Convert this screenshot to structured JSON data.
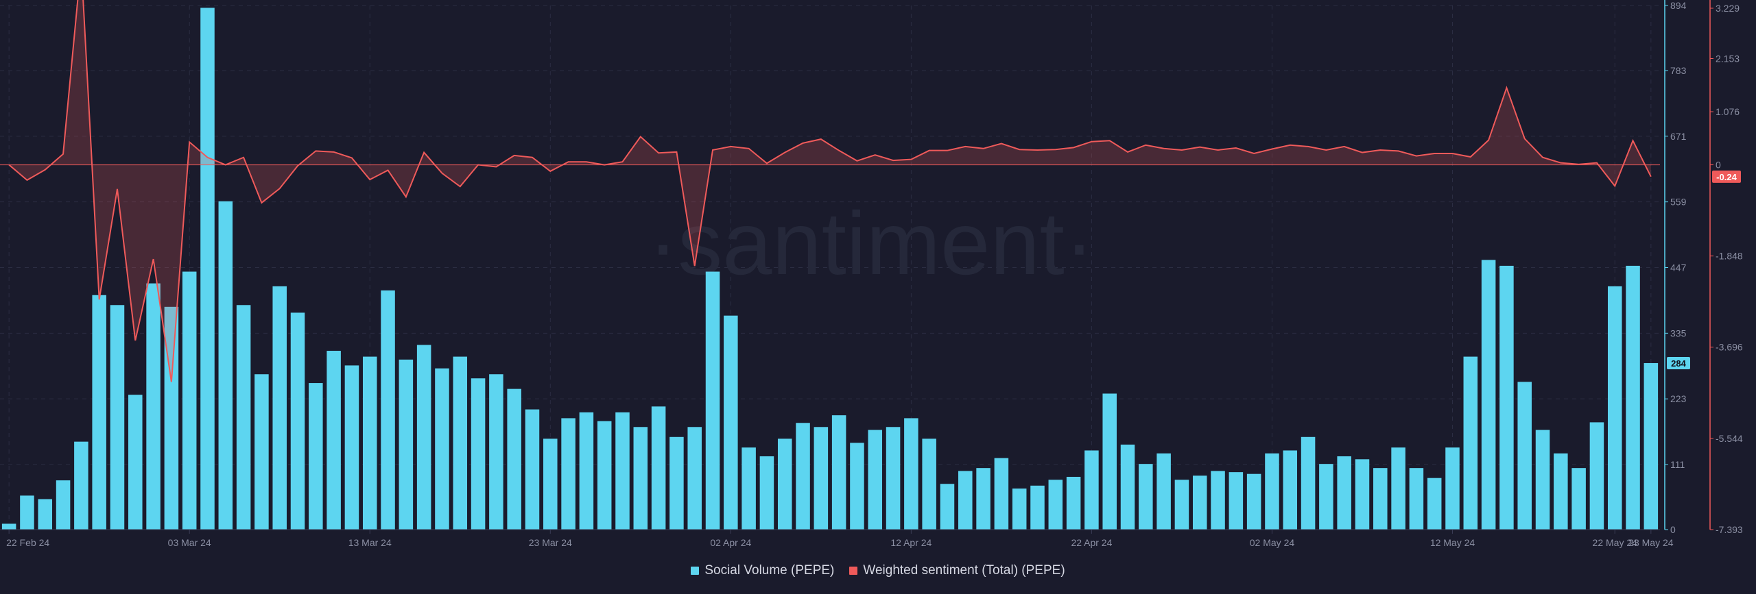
{
  "colors": {
    "background": "#1a1b2c",
    "volume": "#5dd5f0",
    "sentiment": "#ef5a5a",
    "grid": "#2b2d42",
    "tick": "#8b8fa3"
  },
  "watermark": "·santiment·",
  "legend": {
    "volume_label": "Social Volume (PEPE)",
    "sentiment_label": "Weighted sentiment (Total) (PEPE)"
  },
  "chart_data": {
    "type": "bar",
    "grid": true,
    "legend_position": "bottom-center",
    "x_tick_labels": [
      "22 Feb 24",
      "03 Mar 24",
      "13 Mar 24",
      "23 Mar 24",
      "02 Apr 24",
      "12 Apr 24",
      "22 Apr 24",
      "02 May 24",
      "12 May 24",
      "22 May 24",
      "23 May 24"
    ],
    "y_left": {
      "ticks": [
        "894",
        "783",
        "671",
        "559",
        "447",
        "335",
        "223",
        "111",
        "0"
      ],
      "range": [
        0,
        894
      ],
      "current_value_label": "284"
    },
    "y_right": {
      "ticks": [
        "3.229",
        "2.153",
        "1.076",
        "0",
        "-1.848",
        "-3.696",
        "-5.544",
        "-7.393"
      ],
      "current_value_label": "-0.24"
    },
    "series": [
      {
        "name": "Social Volume (PEPE)",
        "type": "bar",
        "values": [
          10,
          58,
          52,
          84,
          150,
          400,
          383,
          230,
          420,
          380,
          440,
          890,
          560,
          383,
          265,
          415,
          370,
          250,
          305,
          280,
          295,
          408,
          290,
          315,
          275,
          295,
          258,
          265,
          240,
          205,
          155,
          190,
          200,
          185,
          200,
          175,
          210,
          158,
          175,
          440,
          365,
          140,
          125,
          155,
          182,
          175,
          195,
          148,
          170,
          175,
          190,
          155,
          78,
          100,
          105,
          122,
          70,
          75,
          85,
          90,
          135,
          232,
          145,
          112,
          130,
          85,
          92,
          100,
          98,
          95,
          130,
          135,
          158,
          112,
          125,
          120,
          105,
          140,
          105,
          88,
          140,
          295,
          460,
          450,
          252,
          170,
          130,
          105,
          183,
          415,
          450,
          284
        ]
      },
      {
        "name": "Weighted sentiment (Total) (PEPE)",
        "type": "area",
        "values": [
          0.0,
          -0.31,
          -0.1,
          0.22,
          4.08,
          -2.73,
          -0.49,
          -3.56,
          -1.91,
          -4.4,
          0.46,
          0.15,
          0.0,
          0.15,
          -0.77,
          -0.48,
          -0.02,
          0.28,
          0.26,
          0.14,
          -0.3,
          -0.11,
          -0.65,
          0.25,
          -0.17,
          -0.44,
          0.0,
          -0.04,
          0.19,
          0.15,
          -0.13,
          0.06,
          0.06,
          0.0,
          0.06,
          0.57,
          0.24,
          0.26,
          -2.05,
          0.3,
          0.37,
          0.33,
          0.03,
          0.25,
          0.44,
          0.52,
          0.29,
          0.08,
          0.2,
          0.09,
          0.11,
          0.29,
          0.29,
          0.37,
          0.33,
          0.43,
          0.31,
          0.3,
          0.31,
          0.35,
          0.47,
          0.49,
          0.26,
          0.4,
          0.33,
          0.3,
          0.36,
          0.3,
          0.34,
          0.23,
          0.32,
          0.4,
          0.37,
          0.3,
          0.37,
          0.25,
          0.3,
          0.28,
          0.18,
          0.23,
          0.23,
          0.16,
          0.5,
          1.56,
          0.53,
          0.15,
          0.04,
          0.01,
          0.04,
          -0.43,
          0.49,
          -0.24
        ]
      }
    ]
  }
}
